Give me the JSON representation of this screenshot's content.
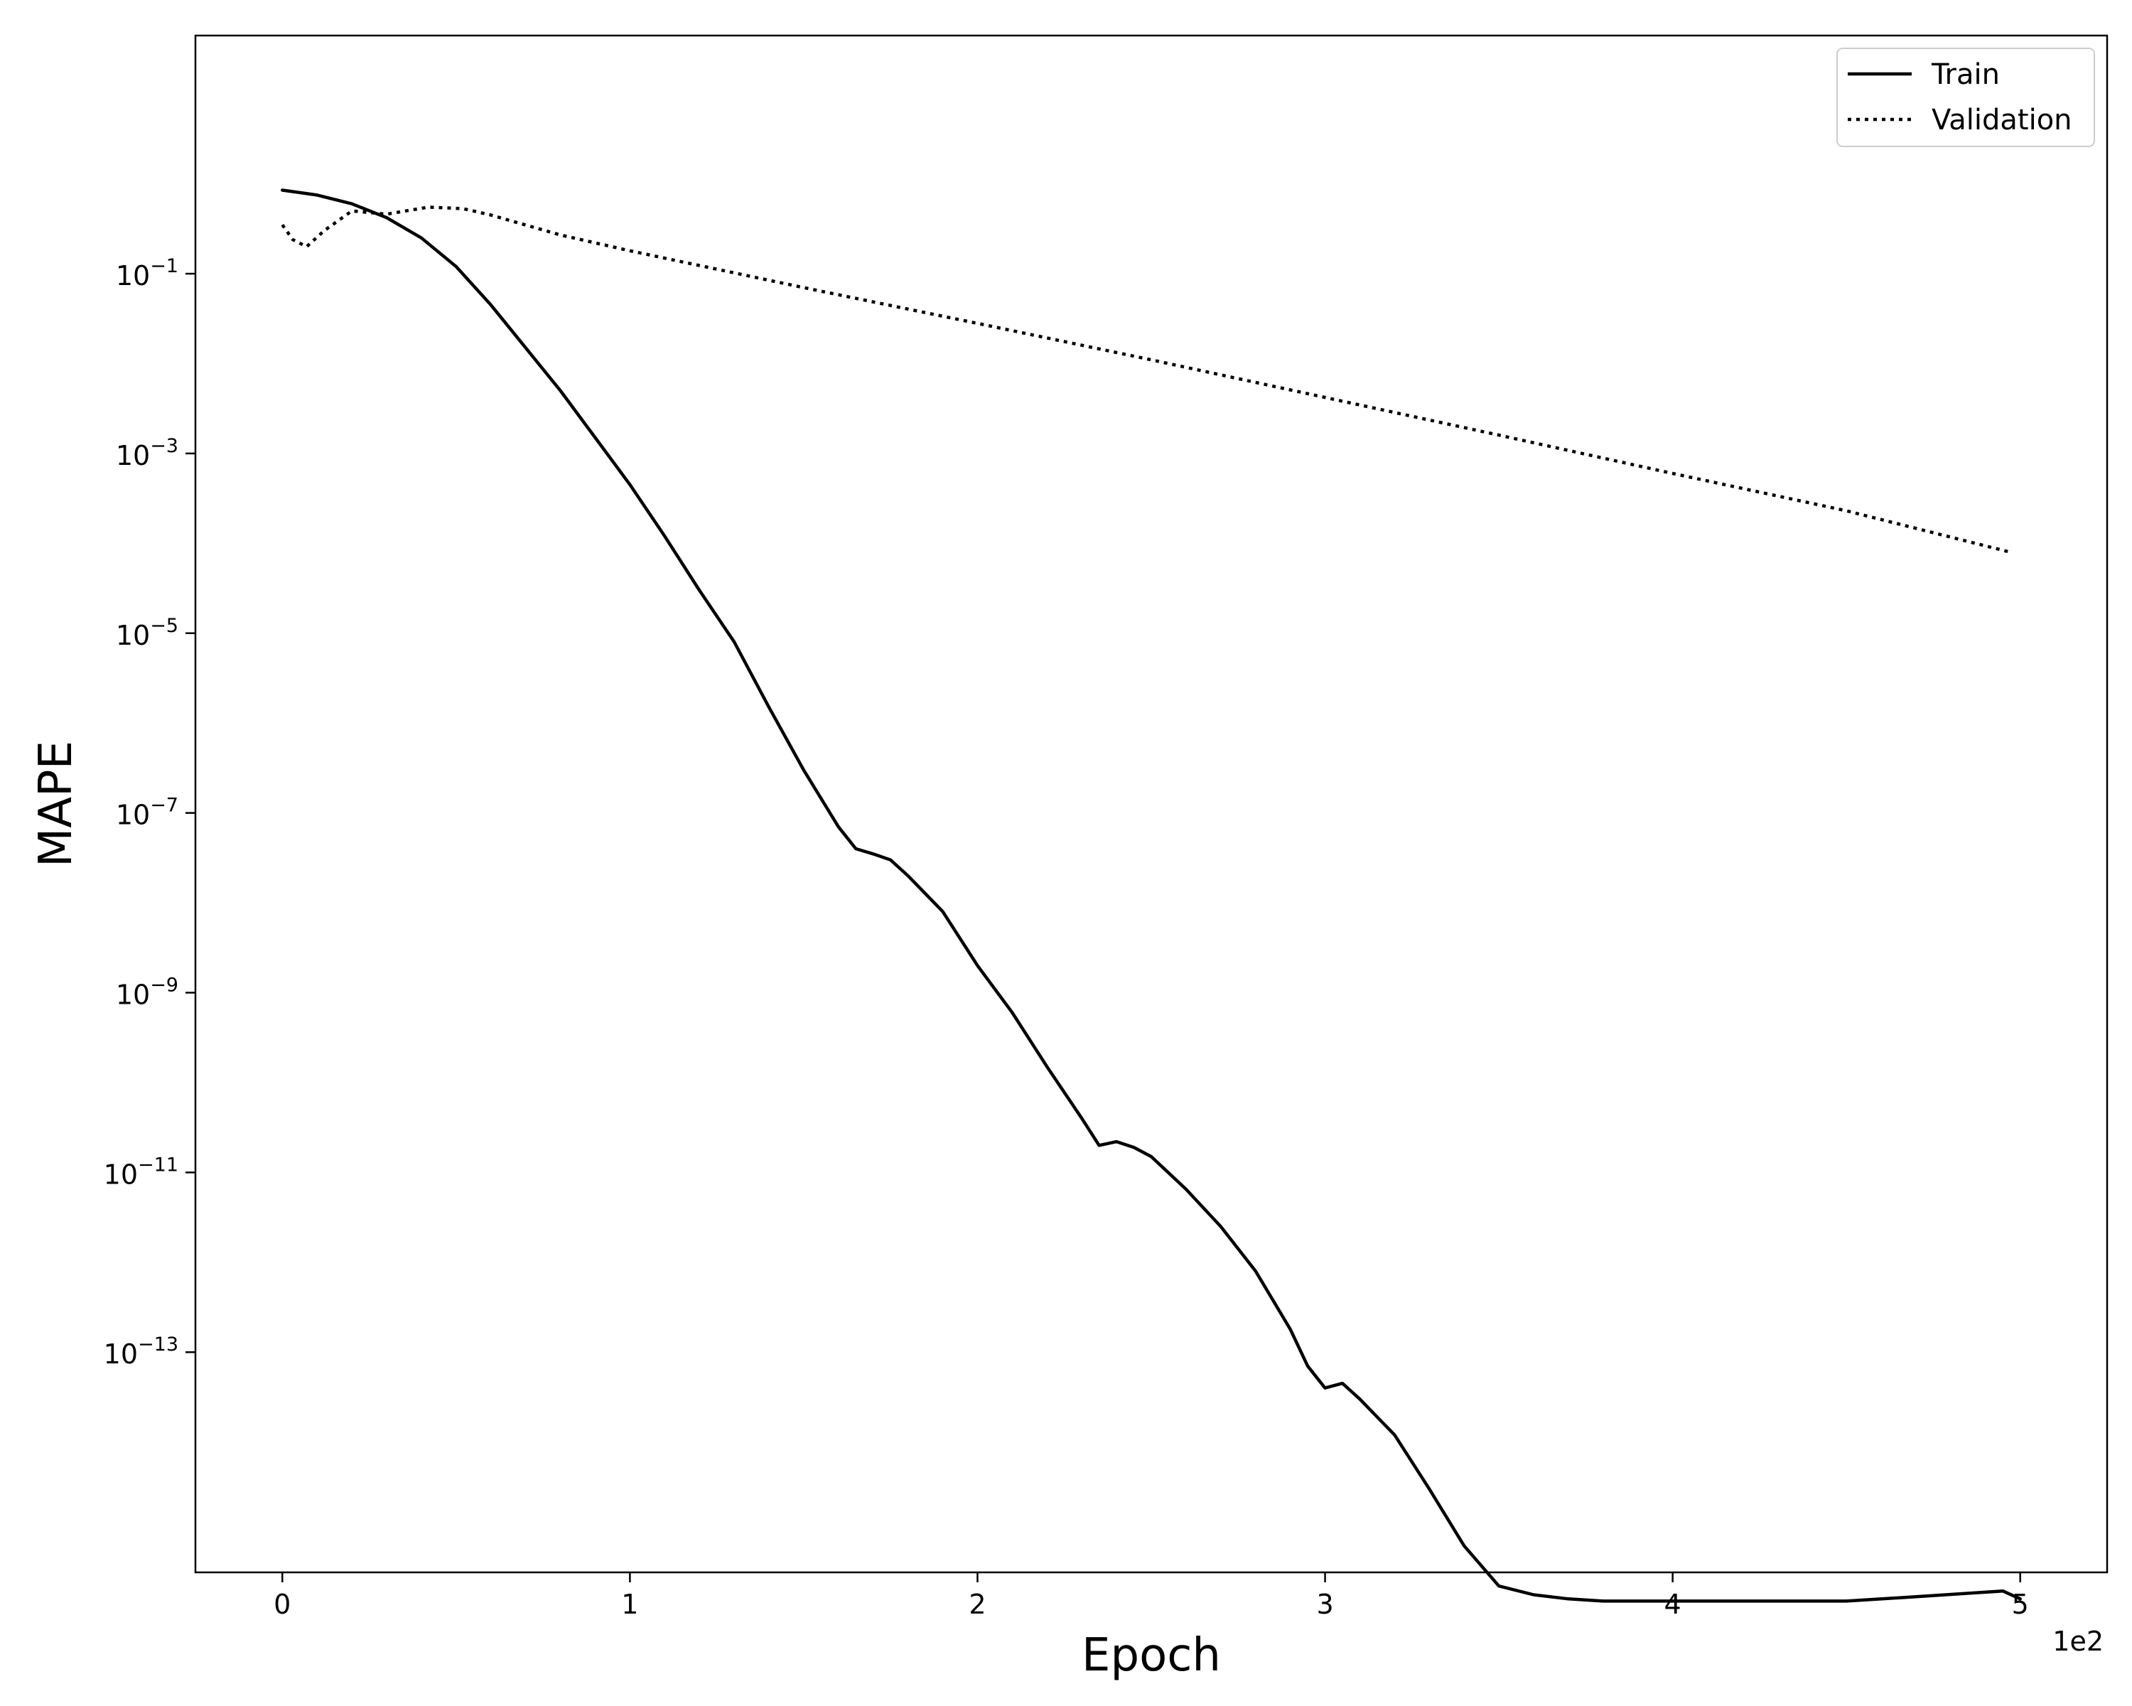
{
  "chart_data": {
    "type": "line",
    "xlabel": "Epoch",
    "ylabel": "MAPE",
    "x_offset_label": "1e2",
    "xlim": [
      -0.25,
      5.25
    ],
    "x_ticks": [
      0,
      1,
      2,
      3,
      4,
      5
    ],
    "x_tick_labels": [
      "0",
      "1",
      "2",
      "3",
      "4",
      "5"
    ],
    "y_scale": "log",
    "ylim_exp": [
      -15.45,
      1.65
    ],
    "y_ticks_exp": [
      -1,
      -3,
      -5,
      -7,
      -9,
      -11,
      -13
    ],
    "y_tick_labels": [
      {
        "base": "10",
        "exp": "−1"
      },
      {
        "base": "10",
        "exp": "−3"
      },
      {
        "base": "10",
        "exp": "−5"
      },
      {
        "base": "10",
        "exp": "−7"
      },
      {
        "base": "10",
        "exp": "−9"
      },
      {
        "base": "10",
        "exp": "−11"
      },
      {
        "base": "10",
        "exp": "−13"
      }
    ],
    "grid": false,
    "legend_position": "top-right",
    "series": [
      {
        "name": "Train",
        "style": "solid",
        "color": "#000000",
        "x": [
          0,
          0.1,
          0.2,
          0.3,
          0.4,
          0.5,
          0.6,
          0.7,
          0.8,
          0.9,
          1.0,
          1.1,
          1.2,
          1.3,
          1.4,
          1.5,
          1.6,
          1.65,
          1.7,
          1.75,
          1.8,
          1.9,
          2.0,
          2.1,
          2.2,
          2.3,
          2.35,
          2.4,
          2.45,
          2.5,
          2.6,
          2.7,
          2.8,
          2.9,
          2.95,
          3.0,
          3.05,
          3.1,
          3.2,
          3.3,
          3.4,
          3.5,
          3.6,
          3.7,
          3.8,
          4.0,
          4.5,
          4.7,
          4.95,
          5.0
        ],
        "y": [
          0.85,
          0.75,
          0.6,
          0.42,
          0.25,
          0.12,
          0.045,
          0.015,
          0.005,
          0.0015,
          0.00045,
          0.00012,
          3e-05,
          8e-06,
          1.5e-06,
          3e-07,
          7e-08,
          4e-08,
          3.5e-08,
          3e-08,
          2e-08,
          8e-09,
          2e-09,
          6e-10,
          1.5e-10,
          4e-11,
          2e-11,
          2.2e-11,
          1.9e-11,
          1.5e-11,
          6.5e-12,
          2.5e-12,
          8e-13,
          1.8e-13,
          7e-14,
          4e-14,
          4.5e-14,
          3e-14,
          1.2e-14,
          3e-15,
          7e-16,
          2.5e-16,
          2e-16,
          1.8e-16,
          1.7e-16,
          1.7e-16,
          1.7e-16,
          1.9e-16,
          2.2e-16,
          1.8e-16
        ]
      },
      {
        "name": "Validation",
        "style": "dotted",
        "color": "#000000",
        "x": [
          0,
          0.03,
          0.07,
          0.12,
          0.2,
          0.3,
          0.42,
          0.52,
          0.6,
          0.8,
          1.0,
          1.5,
          2.0,
          2.5,
          3.0,
          3.5,
          4.0,
          4.5,
          4.97
        ],
        "y": [
          0.35,
          0.24,
          0.2,
          0.3,
          0.5,
          0.46,
          0.55,
          0.53,
          0.45,
          0.27,
          0.18,
          0.07,
          0.028,
          0.011,
          0.0042,
          0.0016,
          0.0006,
          0.00023,
          8e-05
        ]
      }
    ]
  }
}
